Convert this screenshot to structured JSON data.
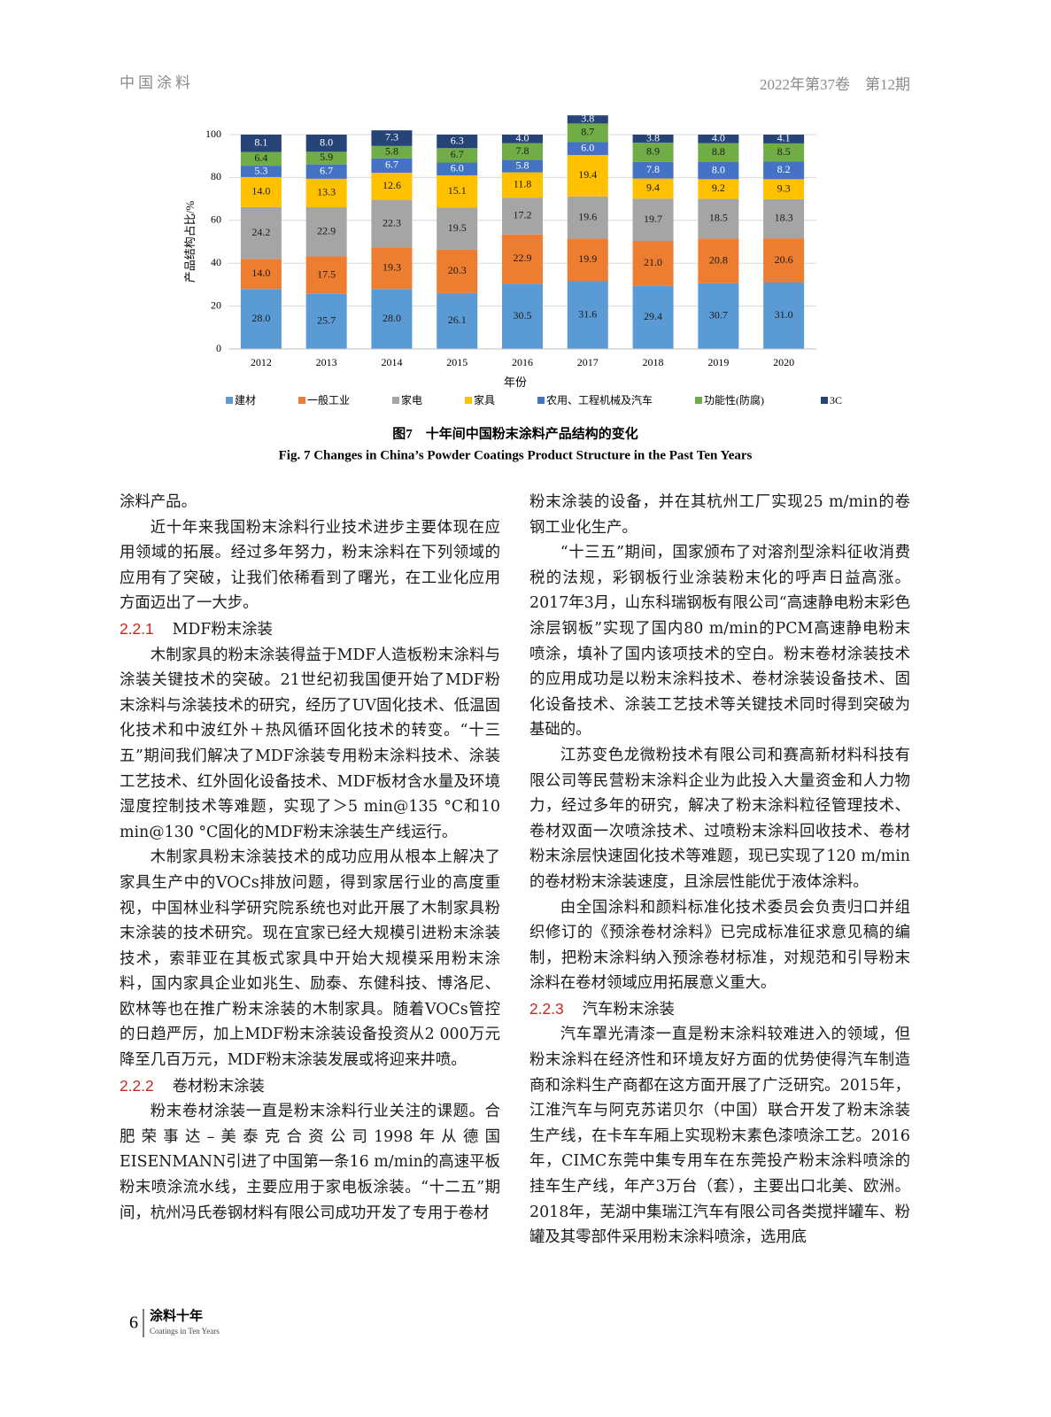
{
  "header": {
    "journal": "中国涂料",
    "issue": "2022年第37卷　第12期"
  },
  "chart_data": {
    "type": "stacked_bar",
    "title": "图7　十年间中国粉末涂料产品结构的变化",
    "subtitle": "Fig. 7  Changes in China’s Powder Coatings Product Structure in the Past Ten Years",
    "x_label": "年份",
    "y_label": "产品结构占比/%",
    "categories": [
      "2012",
      "2013",
      "2014",
      "2015",
      "2016",
      "2017",
      "2018",
      "2019",
      "2020"
    ],
    "ylim": [
      0,
      100
    ],
    "yticks": [
      0,
      20,
      40,
      60,
      80,
      100
    ],
    "grid": true,
    "legend": "bottom",
    "series": [
      {
        "name": "建材",
        "color": "#5b9bd5",
        "values": [
          28.0,
          25.7,
          28.0,
          26.1,
          30.5,
          31.6,
          29.4,
          30.7,
          31.0
        ],
        "value_labels": [
          "28.0",
          "25.7",
          "28.0",
          "26.1",
          "30.5",
          "31.6",
          "29.4",
          "30.7",
          "31.0"
        ]
      },
      {
        "name": "一般工业",
        "color": "#ed7d31",
        "values": [
          14.0,
          17.5,
          19.3,
          20.3,
          22.9,
          19.9,
          21.0,
          20.8,
          20.6
        ],
        "value_labels": [
          "14.0",
          "17.5",
          "19.3",
          "20.3",
          "22.9",
          "19.9",
          "21.0",
          "20.8",
          "20.6"
        ]
      },
      {
        "name": "家电",
        "color": "#a5a5a5",
        "values": [
          24.2,
          22.9,
          22.3,
          19.5,
          17.2,
          19.6,
          19.7,
          18.5,
          18.3
        ],
        "value_labels": [
          "24.2",
          "22.9",
          "22.3",
          "19.5",
          "17.2",
          "19.6",
          "19.7",
          "18.5",
          "18.3"
        ]
      },
      {
        "name": "家具",
        "color": "#ffc000",
        "values": [
          14.0,
          13.3,
          12.6,
          15.1,
          11.8,
          19.4,
          9.4,
          9.2,
          9.3
        ],
        "value_labels": [
          "14.0",
          "13.3",
          "12.6",
          "15.1",
          "11.8",
          "19.4",
          "9.4",
          "9.2",
          "9.3"
        ]
      },
      {
        "name": "农用、工程机械及汽车",
        "color": "#4472c4",
        "values": [
          5.3,
          6.7,
          6.7,
          6.0,
          5.8,
          6.0,
          7.8,
          8.0,
          8.2
        ],
        "value_labels": [
          "5.3",
          "6.7",
          "6.7",
          "6.0",
          "5.8",
          "6.0",
          "7.8",
          "8.0",
          "8.2"
        ]
      },
      {
        "name": "功能性(防腐)",
        "color": "#70ad47",
        "values": [
          6.4,
          5.9,
          5.8,
          6.7,
          7.8,
          8.7,
          8.9,
          8.8,
          8.5
        ],
        "value_labels": [
          "6.4",
          "5.9",
          "5.8",
          "6.7",
          "7.8",
          "8.7",
          "8.9",
          "8.8",
          "8.5"
        ]
      },
      {
        "name": "3C",
        "color": "#264478",
        "values": [
          8.1,
          8.0,
          7.3,
          6.3,
          4.0,
          3.8,
          3.8,
          4.0,
          4.1
        ],
        "value_labels": [
          "8.1",
          "8.0",
          "7.3",
          "6.3",
          "4.0",
          "3.8",
          "3.8",
          "4.0",
          "4.1"
        ]
      }
    ]
  },
  "body": {
    "left_column": [
      {
        "text": "涂料产品。"
      },
      {
        "text": "近十年来我国粉末涂料行业技术进步主要体现在应用领域的拓展。经过多年努力，粉末涂料在下列领域的应用有了突破，让我们依稀看到了曙光，在工业化应用方面迈出了一大步。"
      },
      {
        "number": "2.2.1",
        "title": "MDF粉末涂装"
      },
      {
        "text": "木制家具的粉末涂装得益于MDF人造板粉末涂料与涂装关键技术的突破。21世纪初我国便开始了MDF粉末涂料与涂装技术的研究，经历了UV固化技术、低温固化技术和中波红外＋热风循环固化技术的转变。“十三五”期间我们解决了MDF涂装专用粉末涂料技术、涂装工艺技术、红外固化设备技术、MDF板材含水量及环境湿度控制技术等难题，实现了＞5 min@135 °C和10 min@130 °C固化的MDF粉末涂装生产线运行。"
      },
      {
        "text": "木制家具粉末涂装技术的成功应用从根本上解决了家具生产中的VOCs排放问题，得到家居行业的高度重视，中国林业科学研究院系统也对此开展了木制家具粉末涂装的技术研究。现在宜家已经大规模引进粉末涂装技术，索菲亚在其板式家具中开始大规模采用粉末涂料，国内家具企业如兆生、励泰、东健科技、博洛尼、欧林等也在推广粉末涂装的木制家具。随着VOCs管控的日趋严厉，加上MDF粉末涂装设备投资从2 000万元降至几百万元，MDF粉末涂装发展或将迎来井喷。"
      },
      {
        "number": "2.2.2",
        "title": "卷材粉末涂装"
      },
      {
        "text": "粉末卷材涂装一直是粉末涂料行业关注的课题。合肥荣事达–美泰克合资公司1998年从德国EISENMANN引进了中国第一条16 m/min的高速平板粉末喷涂流水线，主要应用于家电板涂装。“十二五”期间，杭州冯氏卷钢材料有限公司成功开发了专用于卷材"
      }
    ],
    "right_column": [
      {
        "text": "粉末涂装的设备，并在其杭州工厂实现25 m/min的卷钢工业化生产。"
      },
      {
        "text": "“十三五”期间，国家颁布了对溶剂型涂料征收消费税的法规，彩钢板行业涂装粉末化的呼声日益高涨。2017年3月，山东科瑞钢板有限公司“高速静电粉末彩色涂层钢板”实现了国内80 m/min的PCM高速静电粉末喷涂，填补了国内该项技术的空白。粉末卷材涂装技术的应用成功是以粉末涂料技术、卷材涂装设备技术、固化设备技术、涂装工艺技术等关键技术同时得到突破为基础的。"
      },
      {
        "text": "江苏变色龙微粉技术有限公司和赛高新材料科技有限公司等民营粉末涂料企业为此投入大量资金和人力物力，经过多年的研究，解决了粉末涂料粒径管理技术、卷材双面一次喷涂技术、过喷粉末涂料回收技术、卷材粉末涂层快速固化技术等难题，现已实现了120 m/min的卷材粉末涂装速度，且涂层性能优于液体涂料。"
      },
      {
        "text": "由全国涂料和颜料标准化技术委员会负责归口并组织修订的《预涂卷材涂料》已完成标准征求意见稿的编制，把粉末涂料纳入预涂卷材标准，对规范和引导粉末涂料在卷材领域应用拓展意义重大。"
      },
      {
        "number": "2.2.3",
        "title": "汽车粉末涂装"
      },
      {
        "text": "汽车罩光清漆一直是粉末涂料较难进入的领域，但粉末涂料在经济性和环境友好方面的优势使得汽车制造商和涂料生产商都在这方面开展了广泛研究。2015年，江淮汽车与阿克苏诺贝尔（中国）联合开发了粉末涂装生产线，在卡车车厢上实现粉末素色漆喷涂工艺。2016年，CIMC东莞中集专用车在东莞投产粉末涂料喷涂的挂车生产线，年产3万台（套），主要出口北美、欧洲。2018年，芜湖中集瑞江汽车有限公司各类搅拌罐车、粉罐及其零部件采用粉末涂料喷涂，选用底"
      }
    ]
  },
  "footer": {
    "page": "6",
    "column_cn": "涂料十年",
    "column_en": "Coatings in Ten Years"
  }
}
